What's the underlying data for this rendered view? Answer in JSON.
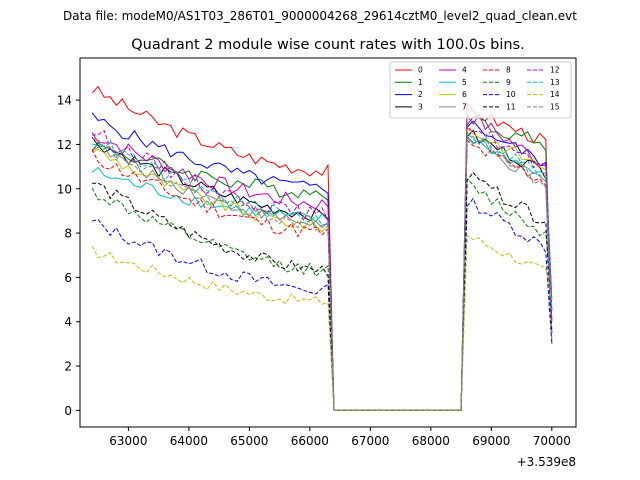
{
  "suptitle": "Data file: modeM0/AS1T03_286T01_9000004268_29614cztM0_level2_quad_clean.evt",
  "chart_data": {
    "type": "line",
    "title": "Quadrant 2 module wise count rates with 100.0s bins.",
    "xlabel": "",
    "ylabel": "",
    "x_offset_label": "+3.539e8",
    "xlim": [
      62200,
      70400
    ],
    "ylim": [
      -0.75,
      15.9
    ],
    "x_ticks": [
      63000,
      64000,
      65000,
      66000,
      67000,
      68000,
      69000,
      70000
    ],
    "y_ticks": [
      0,
      2,
      4,
      6,
      8,
      10,
      12,
      14
    ],
    "x_tick_labels": [
      "63000",
      "64000",
      "65000",
      "66000",
      "67000",
      "68000",
      "69000",
      "70000"
    ],
    "y_tick_labels": [
      "0",
      "2",
      "4",
      "6",
      "8",
      "10",
      "12",
      "14"
    ],
    "x_start": 62400,
    "bin": 100,
    "gap": {
      "last_pre": 66300,
      "zero_from": 66400,
      "zero_to": 68500,
      "first_post": 68600,
      "end": 70000
    },
    "legend": {
      "position": "top-right",
      "columns": 4
    },
    "series": [
      {
        "name": "0",
        "color": "#ff0000",
        "dash": "solid",
        "start": 14.5,
        "pre_end": 10.8,
        "post_start": 13.6,
        "post_end": 12.0,
        "noise": 0.3
      },
      {
        "name": "1",
        "color": "#008000",
        "dash": "solid",
        "start": 12.0,
        "pre_end": 9.8,
        "post_start": 13.2,
        "post_end": 11.9,
        "noise": 0.35
      },
      {
        "name": "2",
        "color": "#0000ff",
        "dash": "solid",
        "start": 13.2,
        "pre_end": 10.0,
        "post_start": 13.0,
        "post_end": 11.0,
        "noise": 0.3
      },
      {
        "name": "3",
        "color": "#000000",
        "dash": "solid",
        "start": 12.2,
        "pre_end": 8.8,
        "post_start": 12.5,
        "post_end": 10.6,
        "noise": 0.3
      },
      {
        "name": "4",
        "color": "#bf00bf",
        "dash": "solid",
        "start": 12.5,
        "pre_end": 9.3,
        "post_start": 13.4,
        "post_end": 10.9,
        "noise": 0.35
      },
      {
        "name": "5",
        "color": "#00bfbf",
        "dash": "solid",
        "start": 10.8,
        "pre_end": 8.6,
        "post_start": 12.4,
        "post_end": 10.3,
        "noise": 0.3
      },
      {
        "name": "6",
        "color": "#bfbf00",
        "dash": "solid",
        "start": 11.8,
        "pre_end": 8.3,
        "post_start": 12.7,
        "post_end": 10.8,
        "noise": 0.3
      },
      {
        "name": "7",
        "color": "#808080",
        "dash": "solid",
        "start": 12.0,
        "pre_end": 8.4,
        "post_start": 12.2,
        "post_end": 10.0,
        "noise": 0.3
      },
      {
        "name": "8",
        "color": "#ff0000",
        "dash": "dashed",
        "start": 11.5,
        "pre_end": 8.0,
        "post_start": 12.0,
        "post_end": 10.2,
        "noise": 0.35
      },
      {
        "name": "9",
        "color": "#008000",
        "dash": "dashed",
        "start": 9.9,
        "pre_end": 6.3,
        "post_start": 10.2,
        "post_end": 7.8,
        "noise": 0.3
      },
      {
        "name": "10",
        "color": "#0000ff",
        "dash": "dashed",
        "start": 8.5,
        "pre_end": 5.4,
        "post_start": 9.5,
        "post_end": 7.2,
        "noise": 0.3
      },
      {
        "name": "11",
        "color": "#000000",
        "dash": "dashed",
        "start": 10.3,
        "pre_end": 6.3,
        "post_start": 10.6,
        "post_end": 8.3,
        "noise": 0.3
      },
      {
        "name": "12",
        "color": "#bf00bf",
        "dash": "dashed",
        "start": 12.6,
        "pre_end": 8.8,
        "post_start": 13.0,
        "post_end": 10.6,
        "noise": 0.35
      },
      {
        "name": "13",
        "color": "#00bfbf",
        "dash": "dashed",
        "start": 12.3,
        "pre_end": 8.6,
        "post_start": 12.6,
        "post_end": 10.4,
        "noise": 0.35
      },
      {
        "name": "14",
        "color": "#bfbf00",
        "dash": "dashed",
        "start": 7.2,
        "pre_end": 4.9,
        "post_start": 7.9,
        "post_end": 6.1,
        "noise": 0.25
      },
      {
        "name": "15",
        "color": "#808080",
        "dash": "dashed",
        "start": 12.1,
        "pre_end": 8.4,
        "post_start": 12.5,
        "post_end": 10.0,
        "noise": 0.35
      }
    ]
  }
}
